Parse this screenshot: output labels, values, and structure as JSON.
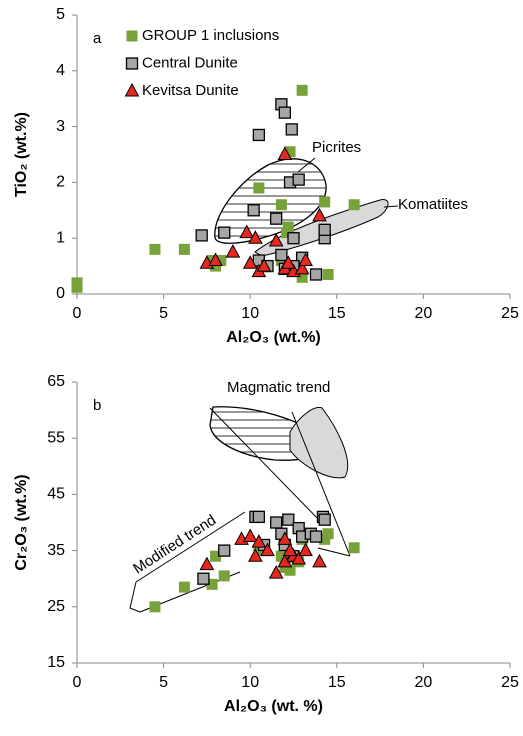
{
  "chart_data": [
    {
      "type": "scatter",
      "label": "a",
      "xlabel": "Al₂O₃ (wt.%)",
      "ylabel": "TiO₂ (wt.%)",
      "xlim": [
        0,
        25
      ],
      "xticks": [
        0,
        5,
        10,
        15,
        20,
        25
      ],
      "ylim": [
        0,
        5
      ],
      "yticks": [
        0,
        1,
        2,
        3,
        4,
        5
      ],
      "legend": "upper left",
      "annotations": [
        "Picrites",
        "Komatiites"
      ],
      "series": [
        {
          "name": "GROUP 1 inclusions",
          "color": "#77a23a",
          "marker": "square",
          "x": [
            0,
            0,
            4.5,
            6.2,
            7.8,
            8.3,
            8,
            10.5,
            11.8,
            12.1,
            12.3,
            13,
            12.8,
            13,
            14.3,
            14.5,
            16,
            12.2,
            11.8
          ],
          "values": [
            0.2,
            0.12,
            0.8,
            0.8,
            0.6,
            0.6,
            0.5,
            1.9,
            1.6,
            1.1,
            2.55,
            3.65,
            0.45,
            0.3,
            1.65,
            0.35,
            1.6,
            1.2,
            0.6
          ]
        },
        {
          "name": "Central Dunite",
          "color": "#a6a6a6",
          "marker": "square-outline",
          "x": [
            7.2,
            8.5,
            10.5,
            10.2,
            11.8,
            12,
            12.4,
            12.3,
            12.8,
            11.5,
            10.5,
            11,
            11.8,
            12.5,
            13,
            14.3,
            14.3,
            13.8,
            12.5,
            12
          ],
          "values": [
            1.05,
            1.1,
            2.85,
            1.5,
            3.4,
            3.25,
            2.95,
            2.0,
            2.05,
            1.35,
            0.6,
            0.5,
            0.7,
            1.0,
            0.65,
            1.0,
            1.15,
            0.35,
            0.5,
            0.45
          ]
        },
        {
          "name": "Kevitsa Dunite",
          "color": "#e8281e",
          "marker": "triangle",
          "x": [
            12,
            7.5,
            8,
            9,
            9.8,
            10,
            10.3,
            10.5,
            10.8,
            11.5,
            12,
            12.5,
            13,
            13.2,
            14,
            12.2
          ],
          "values": [
            2.5,
            0.55,
            0.6,
            0.75,
            1.1,
            0.55,
            1.0,
            0.4,
            0.5,
            0.95,
            0.45,
            0.4,
            0.45,
            0.6,
            1.4,
            0.55
          ]
        }
      ]
    },
    {
      "type": "scatter",
      "label": "b",
      "xlabel": "Al₂O₃ (wt. %)",
      "ylabel": "Cr₂O₃ (wt.%)",
      "xlim": [
        0,
        25
      ],
      "xticks": [
        0,
        5,
        10,
        15,
        20,
        25
      ],
      "ylim": [
        15,
        65
      ],
      "yticks": [
        15,
        25,
        35,
        45,
        55,
        65
      ],
      "annotations": [
        "Magmatic trend",
        "Modified trend"
      ],
      "series": [
        {
          "color": "#77a23a",
          "marker": "square",
          "x": [
            4.5,
            6.2,
            7.8,
            8,
            8.5,
            10.5,
            12,
            12.3,
            13,
            14.3,
            14.5,
            16,
            12.8,
            11.8
          ],
          "values": [
            25,
            28.5,
            29,
            34,
            30.5,
            35,
            32,
            31.5,
            37,
            37,
            38,
            35.5,
            33,
            34
          ]
        },
        {
          "color": "#a6a6a6",
          "marker": "square-outline",
          "x": [
            7.3,
            8.5,
            10.3,
            10.5,
            11.5,
            12.2,
            12.8,
            13,
            12,
            11.8,
            13.5,
            14.2,
            14.3,
            12.5,
            10.8,
            13.8
          ],
          "values": [
            30,
            35,
            41,
            41,
            40,
            40.5,
            39,
            37.5,
            36,
            38,
            38,
            41,
            40.5,
            34,
            36,
            37.5
          ]
        },
        {
          "color": "#e8281e",
          "marker": "triangle",
          "x": [
            7.5,
            9.5,
            10,
            10.3,
            10.5,
            11,
            11.5,
            12,
            12,
            12.5,
            12.8,
            13.2,
            14,
            12.3
          ],
          "values": [
            32.5,
            37,
            37.5,
            34,
            36.5,
            35,
            31,
            37,
            33,
            34,
            33.5,
            35,
            33,
            35
          ]
        }
      ]
    }
  ]
}
